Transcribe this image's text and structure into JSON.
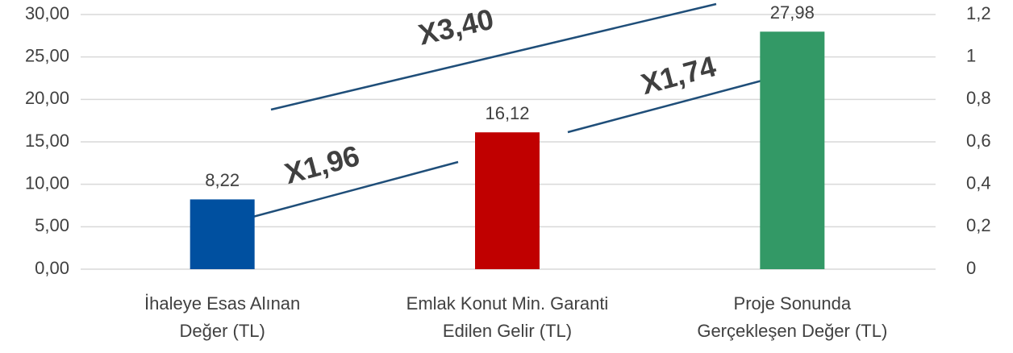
{
  "chart_data": {
    "type": "bar",
    "categories": [
      [
        "İhaleye Esas Alınan",
        "Değer (TL)"
      ],
      [
        "Emlak Konut Min. Garanti",
        "Edilen Gelir (TL)"
      ],
      [
        "Proje Sonunda",
        "Gerçekleşen Değer (TL)"
      ]
    ],
    "values": [
      8.22,
      16.12,
      27.98
    ],
    "value_labels": [
      "8,22",
      "16,12",
      "27,98"
    ],
    "colors": [
      "#0050a0",
      "#c00000",
      "#339966"
    ],
    "ylim": [
      0,
      30
    ],
    "yticks": [
      {
        "value": 0,
        "label": "0,00"
      },
      {
        "value": 5,
        "label": "5,00"
      },
      {
        "value": 10,
        "label": "10,00"
      },
      {
        "value": 15,
        "label": "15,00"
      },
      {
        "value": 20,
        "label": "20,00"
      },
      {
        "value": 25,
        "label": "25,00"
      },
      {
        "value": 30,
        "label": "30,00"
      }
    ],
    "y2lim": [
      0,
      1.2
    ],
    "y2ticks": [
      0,
      {
        "value": 0.2,
        "label": "0,2"
      },
      {
        "value": 0.4,
        "label": "0,4"
      },
      {
        "value": 0.6,
        "label": "0,6"
      },
      {
        "value": 0.8,
        "label": "0,8"
      },
      1,
      {
        "value": 1.2,
        "label": "1,2"
      }
    ],
    "grid": true,
    "annotations": [
      "X1,96",
      "X1,74",
      "X3,40"
    ]
  }
}
